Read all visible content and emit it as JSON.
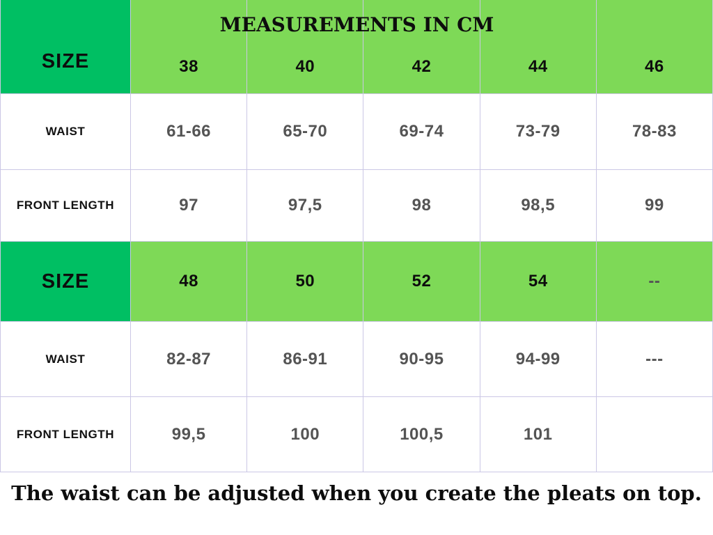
{
  "palette": {
    "dark_green": "#00bf63",
    "light_green": "#7ed957",
    "grid_border": "#cbc7e5",
    "value_gray": "#545454",
    "text_black": "#0d0d0d"
  },
  "table": {
    "title": "MEASUREMENTS IN CM",
    "corner_label": "SIZE",
    "upper": {
      "sizes": [
        "38",
        "40",
        "42",
        "44",
        "46"
      ],
      "rows": [
        {
          "label": "WAIST",
          "values": [
            "61-66",
            "65-70",
            "69-74",
            "73-79",
            "78-83"
          ]
        },
        {
          "label": "FRONT LENGTH",
          "values": [
            "97",
            "97,5",
            "98",
            "98,5",
            "99"
          ]
        }
      ]
    },
    "lower": {
      "size_label": "SIZE",
      "sizes": [
        "48",
        "50",
        "52",
        "54",
        "--"
      ],
      "rows": [
        {
          "label": "WAIST",
          "values": [
            "82-87",
            "86-91",
            "90-95",
            "94-99",
            "---"
          ]
        },
        {
          "label": "FRONT LENGTH",
          "values": [
            "99,5",
            "100",
            "100,5",
            "101",
            ""
          ]
        }
      ]
    }
  },
  "footer": {
    "note": "The waist can be adjusted when you create the pleats on top."
  },
  "chart_data": {
    "type": "table",
    "title": "MEASUREMENTS IN CM",
    "unit": "cm",
    "upper_columns": [
      "SIZE",
      "38",
      "40",
      "42",
      "44",
      "46"
    ],
    "upper_rows": [
      [
        "WAIST",
        "61-66",
        "65-70",
        "69-74",
        "73-79",
        "78-83"
      ],
      [
        "FRONT LENGTH",
        "97",
        "97,5",
        "98",
        "98,5",
        "99"
      ]
    ],
    "lower_columns": [
      "SIZE",
      "48",
      "50",
      "52",
      "54",
      "--"
    ],
    "lower_rows": [
      [
        "WAIST",
        "82-87",
        "86-91",
        "90-95",
        "94-99",
        "---"
      ],
      [
        "FRONT LENGTH",
        "99,5",
        "100",
        "100,5",
        "101",
        ""
      ]
    ],
    "note": "The waist can be adjusted when you create the pleats on top."
  }
}
